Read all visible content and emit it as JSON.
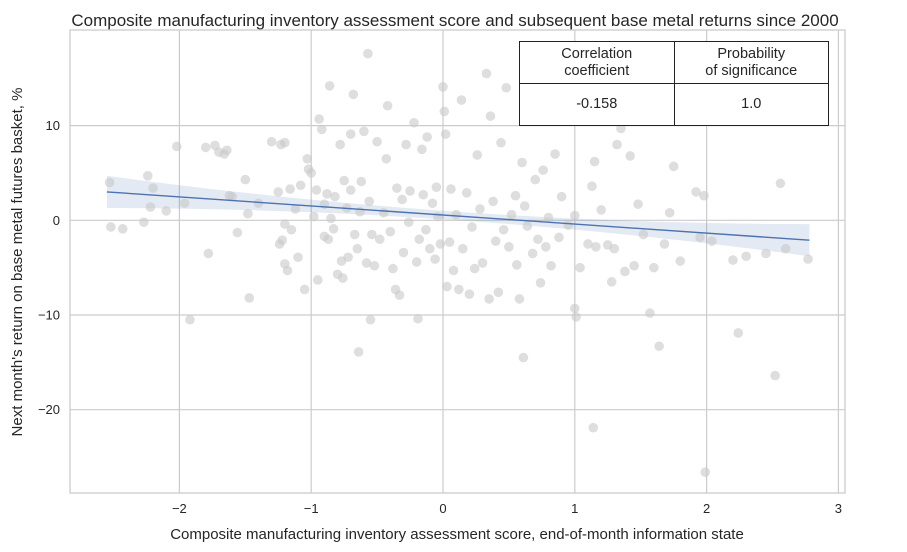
{
  "chart_data": {
    "type": "scatter",
    "title": "Composite manufacturing inventory assessment score and subsequent base metal returns since 2000",
    "xlabel": "Composite manufacturing inventory assessment score, end-of-month information state",
    "ylabel": "Next month's return on base metal futures basket, %",
    "xlim": [
      -2.83,
      3.05
    ],
    "ylim": [
      -28.8,
      20.1
    ],
    "xticks": [
      -2,
      -1,
      0,
      1,
      2,
      3
    ],
    "xtick_labels": [
      "−2",
      "−1",
      "0",
      "1",
      "2",
      "3"
    ],
    "yticks": [
      -20,
      -10,
      0,
      10
    ],
    "ytick_labels": [
      "−20",
      "−10",
      "0",
      "10"
    ],
    "grid": true,
    "colors": {
      "points": "#c8c8c8",
      "line": "#4c72b0",
      "band": "#4c72b0"
    },
    "regression": {
      "slope": -0.957,
      "intercept": 0.56,
      "x_range": [
        -2.55,
        2.78
      ],
      "ci_halfwidth_ends": 1.7,
      "ci_halfwidth_center": 0.45
    },
    "stats_table": {
      "headers": [
        "Correlation\ncoefficient",
        "Probability\nof significance"
      ],
      "values": [
        "-0.158",
        "1.0"
      ]
    },
    "points": [
      [
        -2.53,
        4.0
      ],
      [
        -2.52,
        -0.7
      ],
      [
        -2.43,
        -0.9
      ],
      [
        -2.27,
        -0.2
      ],
      [
        -2.24,
        4.7
      ],
      [
        -2.22,
        1.4
      ],
      [
        -2.2,
        3.4
      ],
      [
        -2.1,
        1.0
      ],
      [
        -2.02,
        7.8
      ],
      [
        -1.96,
        1.8
      ],
      [
        -1.92,
        -10.5
      ],
      [
        -1.8,
        7.7
      ],
      [
        -1.78,
        -3.5
      ],
      [
        -1.73,
        7.9
      ],
      [
        -1.7,
        7.2
      ],
      [
        -1.66,
        7.0
      ],
      [
        -1.64,
        7.4
      ],
      [
        -1.62,
        2.6
      ],
      [
        -1.6,
        2.5
      ],
      [
        -1.56,
        -1.3
      ],
      [
        -1.5,
        4.3
      ],
      [
        -1.48,
        0.7
      ],
      [
        -1.47,
        -8.2
      ],
      [
        -1.4,
        1.8
      ],
      [
        -1.3,
        8.3
      ],
      [
        -1.25,
        3.0
      ],
      [
        -1.23,
        8.0
      ],
      [
        -1.2,
        8.2
      ],
      [
        -1.24,
        -2.5
      ],
      [
        -1.22,
        -2.1
      ],
      [
        -1.2,
        -4.6
      ],
      [
        -1.18,
        -5.3
      ],
      [
        -1.15,
        -1.0
      ],
      [
        -1.2,
        -0.4
      ],
      [
        -1.16,
        3.3
      ],
      [
        -1.12,
        1.2
      ],
      [
        -1.1,
        -3.9
      ],
      [
        -1.08,
        3.7
      ],
      [
        -1.05,
        -7.3
      ],
      [
        -1.03,
        6.5
      ],
      [
        -1.02,
        5.4
      ],
      [
        -1.0,
        5.0
      ],
      [
        -0.98,
        0.4
      ],
      [
        -0.96,
        3.2
      ],
      [
        -0.95,
        -6.3
      ],
      [
        -0.94,
        10.7
      ],
      [
        -0.92,
        9.6
      ],
      [
        -0.9,
        -1.7
      ],
      [
        -0.9,
        1.7
      ],
      [
        -0.88,
        2.8
      ],
      [
        -0.87,
        -2.0
      ],
      [
        -0.86,
        14.2
      ],
      [
        -0.85,
        0.2
      ],
      [
        -0.83,
        -0.9
      ],
      [
        -0.82,
        2.5
      ],
      [
        -0.8,
        -5.7
      ],
      [
        -0.78,
        8.0
      ],
      [
        -0.77,
        -4.3
      ],
      [
        -0.76,
        -6.1
      ],
      [
        -0.75,
        4.2
      ],
      [
        -0.73,
        1.3
      ],
      [
        -0.72,
        -3.9
      ],
      [
        -0.7,
        9.1
      ],
      [
        -0.7,
        3.2
      ],
      [
        -0.68,
        13.3
      ],
      [
        -0.67,
        -1.5
      ],
      [
        -0.65,
        -3.0
      ],
      [
        -0.64,
        -13.9
      ],
      [
        -0.63,
        0.9
      ],
      [
        -0.62,
        4.1
      ],
      [
        -0.6,
        9.4
      ],
      [
        -0.58,
        -4.5
      ],
      [
        -0.57,
        17.6
      ],
      [
        -0.56,
        2.0
      ],
      [
        -0.55,
        -10.5
      ],
      [
        -0.54,
        -1.5
      ],
      [
        -0.52,
        -4.8
      ],
      [
        -0.5,
        8.3
      ],
      [
        -0.48,
        -2.0
      ],
      [
        -0.45,
        0.8
      ],
      [
        -0.43,
        6.5
      ],
      [
        -0.42,
        12.1
      ],
      [
        -0.4,
        -1.2
      ],
      [
        -0.38,
        -5.1
      ],
      [
        -0.36,
        -7.3
      ],
      [
        -0.35,
        3.4
      ],
      [
        -0.33,
        -7.9
      ],
      [
        -0.31,
        2.2
      ],
      [
        -0.3,
        -3.4
      ],
      [
        -0.28,
        8.0
      ],
      [
        -0.26,
        -0.2
      ],
      [
        -0.25,
        3.1
      ],
      [
        -0.22,
        10.3
      ],
      [
        -0.2,
        -4.4
      ],
      [
        -0.19,
        -10.4
      ],
      [
        -0.18,
        -2.0
      ],
      [
        -0.16,
        7.5
      ],
      [
        -0.15,
        2.7
      ],
      [
        -0.13,
        -1.0
      ],
      [
        -0.12,
        8.8
      ],
      [
        -0.1,
        -3.0
      ],
      [
        -0.08,
        1.8
      ],
      [
        -0.06,
        -4.1
      ],
      [
        -0.05,
        3.5
      ],
      [
        -0.04,
        0.4
      ],
      [
        -0.02,
        -2.5
      ],
      [
        0,
        14.1
      ],
      [
        0.01,
        11.5
      ],
      [
        0.02,
        9.1
      ],
      [
        0.03,
        -7.0
      ],
      [
        0.05,
        -2.3
      ],
      [
        0.06,
        3.3
      ],
      [
        0.08,
        -5.3
      ],
      [
        0.1,
        0.6
      ],
      [
        0.12,
        -7.3
      ],
      [
        0.14,
        12.7
      ],
      [
        0.15,
        -3.0
      ],
      [
        0.18,
        2.9
      ],
      [
        0.2,
        -7.8
      ],
      [
        0.22,
        -0.7
      ],
      [
        0.24,
        -5.1
      ],
      [
        0.26,
        6.9
      ],
      [
        0.28,
        1.2
      ],
      [
        0.3,
        -4.5
      ],
      [
        0.33,
        15.5
      ],
      [
        0.35,
        -8.3
      ],
      [
        0.36,
        11.0
      ],
      [
        0.38,
        2.0
      ],
      [
        0.4,
        -2.2
      ],
      [
        0.42,
        -7.6
      ],
      [
        0.44,
        8.2
      ],
      [
        0.46,
        -1.0
      ],
      [
        0.48,
        14.0
      ],
      [
        0.5,
        -2.8
      ],
      [
        0.52,
        0.6
      ],
      [
        0.55,
        2.6
      ],
      [
        0.56,
        -4.7
      ],
      [
        0.58,
        -8.3
      ],
      [
        0.6,
        6.1
      ],
      [
        0.61,
        -14.5
      ],
      [
        0.62,
        1.5
      ],
      [
        0.64,
        -0.6
      ],
      [
        0.66,
        12.5
      ],
      [
        0.68,
        -3.5
      ],
      [
        0.7,
        4.3
      ],
      [
        0.72,
        -2.0
      ],
      [
        0.74,
        -6.6
      ],
      [
        0.76,
        5.3
      ],
      [
        0.78,
        -2.8
      ],
      [
        0.8,
        0.3
      ],
      [
        0.82,
        -4.8
      ],
      [
        0.85,
        7.0
      ],
      [
        0.88,
        -1.8
      ],
      [
        0.9,
        2.5
      ],
      [
        0.95,
        -0.5
      ],
      [
        1.0,
        0.5
      ],
      [
        1.0,
        -9.3
      ],
      [
        1.01,
        -10.2
      ],
      [
        1.04,
        -5.0
      ],
      [
        1.1,
        -2.5
      ],
      [
        1.13,
        3.6
      ],
      [
        1.14,
        -21.9
      ],
      [
        1.15,
        6.2
      ],
      [
        1.16,
        -2.8
      ],
      [
        1.2,
        1.1
      ],
      [
        1.25,
        -2.6
      ],
      [
        1.28,
        -6.5
      ],
      [
        1.3,
        -3.0
      ],
      [
        1.32,
        8.0
      ],
      [
        1.35,
        9.7
      ],
      [
        1.38,
        -5.4
      ],
      [
        1.42,
        6.8
      ],
      [
        1.45,
        -4.8
      ],
      [
        1.48,
        1.7
      ],
      [
        1.52,
        -1.5
      ],
      [
        1.57,
        -9.8
      ],
      [
        1.6,
        -5.0
      ],
      [
        1.64,
        -13.3
      ],
      [
        1.68,
        -2.5
      ],
      [
        1.75,
        5.7
      ],
      [
        1.72,
        0.8
      ],
      [
        1.8,
        -4.3
      ],
      [
        1.92,
        3.0
      ],
      [
        1.95,
        -1.8
      ],
      [
        1.98,
        2.6
      ],
      [
        1.99,
        -26.6
      ],
      [
        2.04,
        -2.2
      ],
      [
        2.2,
        -4.2
      ],
      [
        2.24,
        -11.9
      ],
      [
        2.3,
        -3.8
      ],
      [
        2.45,
        -3.5
      ],
      [
        2.52,
        -16.4
      ],
      [
        2.56,
        3.9
      ],
      [
        2.6,
        -3.0
      ],
      [
        2.77,
        -4.1
      ]
    ]
  }
}
